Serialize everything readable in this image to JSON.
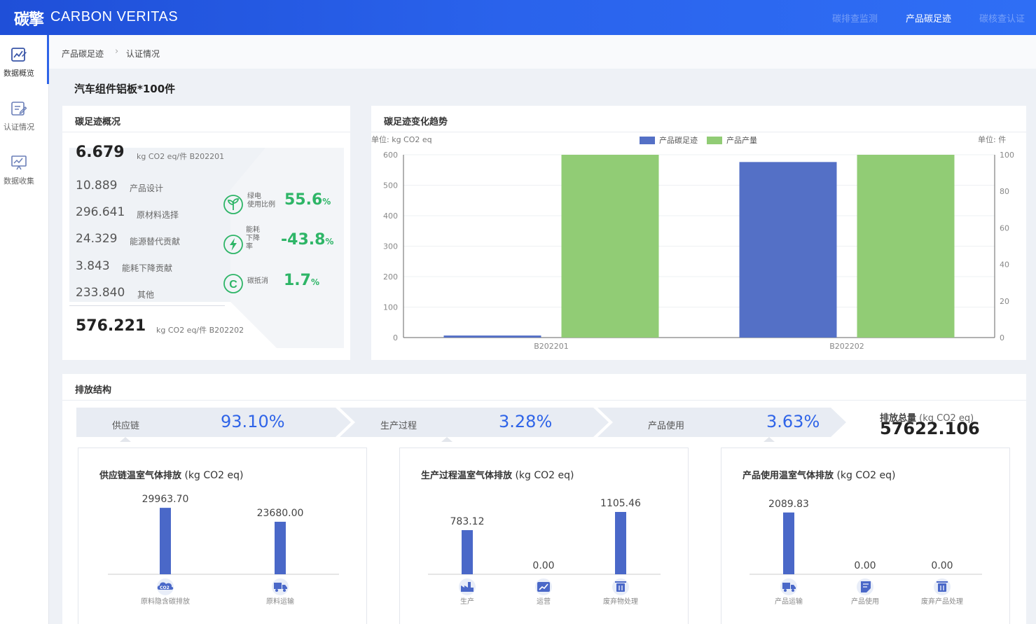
{
  "header": {
    "logo_cn": "碳擎",
    "logo_en": "CARBON VERITAS",
    "nav": [
      {
        "label": "碳排查监测",
        "active": false
      },
      {
        "label": "产品碳足迹",
        "active": true
      },
      {
        "label": "碳核查认证",
        "active": false
      }
    ]
  },
  "sidebar": {
    "items": [
      {
        "label": "数据概览",
        "icon": "chart-edit-icon",
        "active": true
      },
      {
        "label": "认证情况",
        "icon": "certificate-edit-icon",
        "active": false
      },
      {
        "label": "数据收集",
        "icon": "presentation-chart-icon",
        "active": false
      }
    ]
  },
  "breadcrumb": [
    "产品碳足迹",
    "认证情况"
  ],
  "page_title": "汽车组件铝板*100件",
  "overview": {
    "title": "碳足迹概况",
    "top_value": "6.679",
    "top_unit": "kg CO2 eq/件 B202201",
    "rows": [
      {
        "value": "10.889",
        "label": "产品设计"
      },
      {
        "value": "296.641",
        "label": "原材料选择"
      },
      {
        "value": "24.329",
        "label": "能源替代贡献"
      },
      {
        "value": "3.843",
        "label": "能耗下降贡献"
      },
      {
        "value": "233.840",
        "label": "其他"
      }
    ],
    "bottom_value": "576.221",
    "bottom_unit": "kg CO2 eq/件 B202202",
    "kpis": [
      {
        "label_lines": [
          "绿电",
          "使用比例"
        ],
        "value": "55.6",
        "suffix": "%",
        "icon": "sprout-icon"
      },
      {
        "label_lines": [
          "能耗",
          "下降",
          "率"
        ],
        "value": "-43.8",
        "suffix": "%",
        "icon": "lightning-icon"
      },
      {
        "label_lines": [
          "碳抵消"
        ],
        "value": "1.7",
        "suffix": "%",
        "icon": "carbon-c-icon"
      }
    ],
    "green": "#2eb567"
  },
  "trend": {
    "title": "碳足迹变化趋势",
    "left_unit": "单位: kg CO2 eq",
    "right_unit": "单位: 件",
    "legend": [
      {
        "label": "产品碳足迹",
        "color": "#5470c6"
      },
      {
        "label": "产品产量",
        "color": "#91cc75"
      }
    ]
  },
  "structure": {
    "title": "排放结构",
    "flow": [
      {
        "label": "供应链",
        "pct": "93.10%"
      },
      {
        "label": "生产过程",
        "pct": "3.28%"
      },
      {
        "label": "产品使用",
        "pct": "3.63%"
      }
    ],
    "total_label": "排放总量",
    "total_unit": "(kg CO2 eq)",
    "total_value": "57622.106",
    "panels": [
      {
        "title": "供应链温室气体排放",
        "unit": "(kg CO2 eq)"
      },
      {
        "title": "生产过程温室气体排放",
        "unit": "(kg CO2 eq)"
      },
      {
        "title": "产品使用温室气体排放",
        "unit": "(kg CO2 eq)"
      }
    ]
  },
  "chart_data": [
    {
      "type": "bar",
      "categories": [
        "B202201",
        "B202202"
      ],
      "series": [
        {
          "name": "产品碳足迹",
          "axis": "left",
          "values": [
            6.679,
            576.221
          ],
          "color": "#5470c6"
        },
        {
          "name": "产品产量",
          "axis": "right",
          "values": [
            100,
            100
          ],
          "color": "#91cc75"
        }
      ],
      "ylabel_left": "单位: kg CO2 eq",
      "ylabel_right": "单位: 件",
      "ylim_left": [
        0,
        600
      ],
      "yticks_left": [
        0,
        100,
        200,
        300,
        400,
        500,
        600
      ],
      "ylim_right": [
        0,
        100
      ],
      "yticks_right": [
        0,
        20,
        40,
        60,
        80,
        100
      ],
      "grid": true,
      "legend": "top-center"
    },
    {
      "type": "bar",
      "categories": [
        "原料隐含碳排放",
        "原料运输"
      ],
      "values": [
        29963.7,
        23680.0
      ],
      "labels": [
        "29963.70",
        "23680.00"
      ],
      "icons": [
        "co2-cloud-icon",
        "truck-icon"
      ],
      "color": "#4a68c8"
    },
    {
      "type": "bar",
      "categories": [
        "生产",
        "运营",
        "废弃物处理"
      ],
      "values": [
        783.12,
        0.0,
        1105.46
      ],
      "labels": [
        "783.12",
        "0.00",
        "1105.46"
      ],
      "icons": [
        "factory-icon",
        "chart-trend-icon",
        "trash-icon"
      ],
      "color": "#4a68c8"
    },
    {
      "type": "bar",
      "categories": [
        "产品运输",
        "产品使用",
        "废弃产品处理"
      ],
      "values": [
        2089.83,
        0.0,
        0.0
      ],
      "labels": [
        "2089.83",
        "0.00",
        "0.00"
      ],
      "icons": [
        "truck-icon",
        "product-use-icon",
        "trash-icon"
      ],
      "color": "#4a68c8"
    }
  ]
}
